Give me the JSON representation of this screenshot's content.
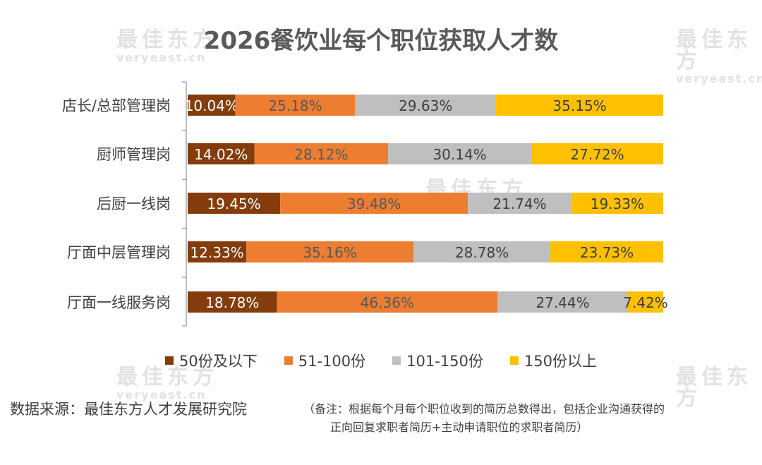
{
  "title": "2026餐饮业每个职位获取人才数",
  "watermark": {
    "cn": "最佳东方",
    "en": "veryeast.cn"
  },
  "colors": {
    "s1": "#843C0C",
    "s2": "#ED7D31",
    "s3": "#BFBFBF",
    "s4": "#FFC000",
    "axis": "#A6A6A6",
    "label": "#404040"
  },
  "chart_data": {
    "type": "bar",
    "orientation": "horizontal",
    "stacked": "percent",
    "categories": [
      "店长/总部管理岗",
      "厨师管理岗",
      "后厨一线岗",
      "厅面中层管理岗",
      "厅面一线服务岗"
    ],
    "series": [
      {
        "name": "50份及以下",
        "values": [
          10.04,
          14.02,
          19.45,
          12.33,
          18.78
        ]
      },
      {
        "name": "51-100份",
        "values": [
          25.18,
          28.12,
          39.48,
          35.16,
          46.36
        ]
      },
      {
        "name": "101-150份",
        "values": [
          29.63,
          30.14,
          21.74,
          28.78,
          27.44
        ]
      },
      {
        "name": "150份以上",
        "values": [
          35.15,
          27.72,
          19.33,
          23.73,
          7.42
        ]
      }
    ],
    "data_label_format": "0.00%",
    "legend_position": "bottom",
    "grid": false
  },
  "legend": [
    "50份及以下",
    "51-100份",
    "101-150份",
    "150份以上"
  ],
  "source": "数据来源：最佳东方人才发展研究院",
  "note": {
    "line1": "（备注：根据每个月每个职位收到的简历总数得出，包括企业沟通获得的",
    "line2": "正向回复求职者简历+主动申请职位的求职者简历）"
  }
}
